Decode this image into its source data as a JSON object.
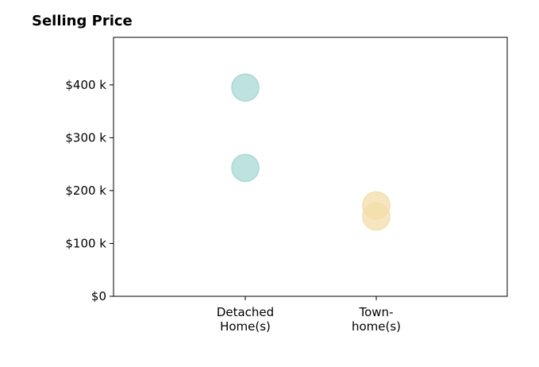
{
  "chart_data": {
    "type": "scatter",
    "title": "Selling Price",
    "xlabel": "",
    "ylabel": "",
    "categories": [
      "Detached\nHome(s)",
      "Town-\nhome(s)"
    ],
    "ylim": [
      0,
      490000
    ],
    "y_ticks": [
      0,
      100000,
      200000,
      300000,
      400000
    ],
    "y_tick_labels": [
      "$0",
      "$100 k",
      "$200 k",
      "$300 k",
      "$400 k"
    ],
    "grid": false,
    "series": [
      {
        "category": "Detached\nHome(s)",
        "values": [
          395000,
          243000
        ],
        "color": "#a8d8d4"
      },
      {
        "category": "Town-\nhome(s)",
        "values": [
          172000,
          151000
        ],
        "color": "#f3deaa"
      }
    ]
  }
}
